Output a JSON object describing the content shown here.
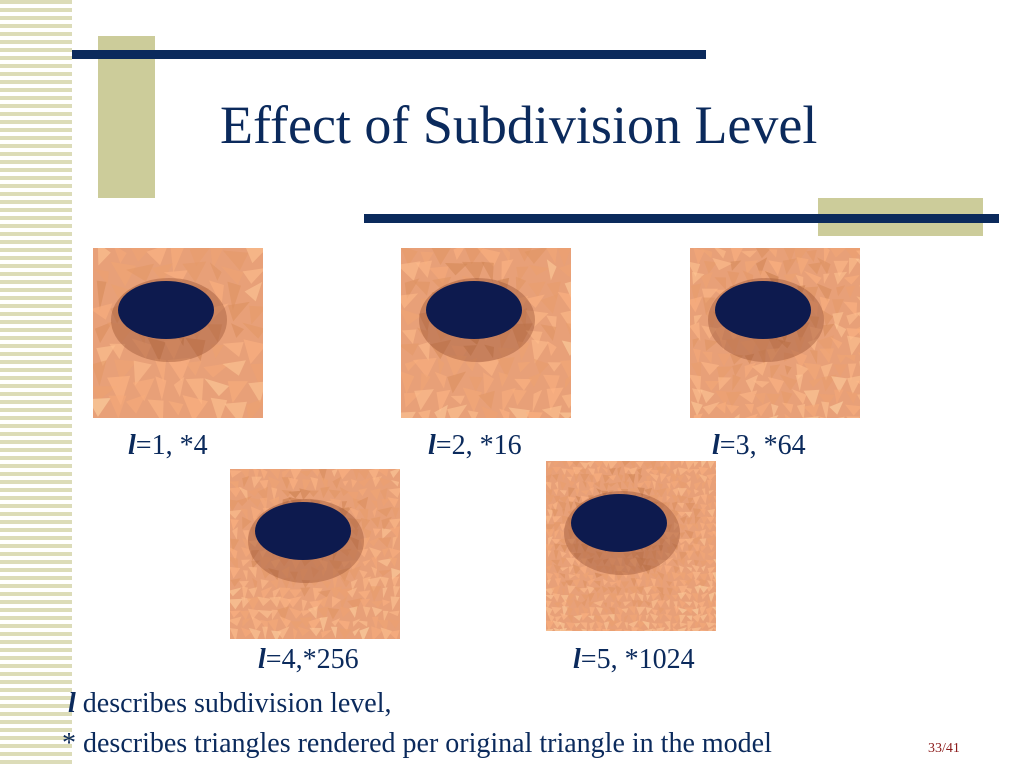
{
  "slide": {
    "title": "Effect of Subdivision Level",
    "page_number": "33/41"
  },
  "figures": [
    {
      "var": "l",
      "text": "=1, *4",
      "level": 1,
      "triangles_per_original": 4
    },
    {
      "var": "l",
      "text": "=2, *16",
      "level": 2,
      "triangles_per_original": 16
    },
    {
      "var": "l",
      "text": "=3, *64",
      "level": 3,
      "triangles_per_original": 64
    },
    {
      "var": "l",
      "text": "=4,*256",
      "level": 4,
      "triangles_per_original": 256
    },
    {
      "var": "l",
      "text": "=5, *1024",
      "level": 5,
      "triangles_per_original": 1024
    }
  ],
  "notes": {
    "line1_var": "l",
    "line1_text": " describes subdivision level,",
    "line2_text": "* describes triangles rendered per original triangle in the model"
  },
  "colors": {
    "title": "#0b2a5c",
    "accent_block": "#cccc9a",
    "accent_line": "#0b2a5c",
    "surface": "#e8a078",
    "hole": "#0d1a4e",
    "page_number": "#8b1a1a"
  }
}
